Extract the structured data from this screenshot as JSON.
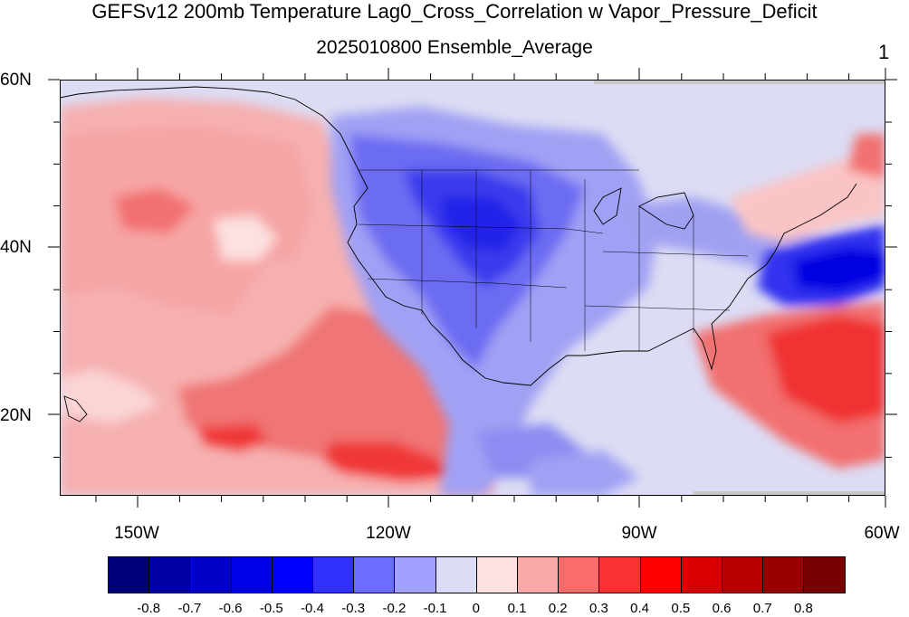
{
  "title": "GEFSv12 200mb Temperature Lag0_Cross_Correlation w Vapor_Pressure_Deficit",
  "subtitle": "2025010800 Ensemble_Average",
  "panel_number": "1",
  "map": {
    "lat_labels": [
      "60N",
      "40N",
      "20N"
    ],
    "lon_labels": [
      "150W",
      "120W",
      "90W",
      "60W"
    ]
  },
  "colorbar": {
    "colors": [
      "#00007a",
      "#0000a8",
      "#0000c8",
      "#0000e6",
      "#0000ff",
      "#3030ff",
      "#6c6cff",
      "#a0a0ff",
      "#dcdcf6",
      "#fde0e0",
      "#fba8a8",
      "#f86c6c",
      "#f83232",
      "#ff0000",
      "#d80000",
      "#b80000",
      "#980000",
      "#780000"
    ],
    "labels": [
      "-0.8",
      "-0.7",
      "-0.6",
      "-0.5",
      "-0.4",
      "-0.3",
      "-0.2",
      "-0.1",
      "0",
      "0.1",
      "0.2",
      "0.3",
      "0.4",
      "0.5",
      "0.6",
      "0.7",
      "0.8"
    ]
  }
}
